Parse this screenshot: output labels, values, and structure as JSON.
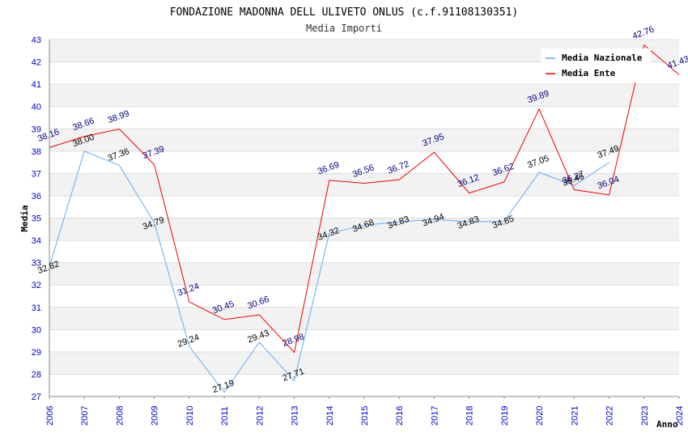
{
  "chart_data": {
    "type": "line",
    "title": "FONDAZIONE MADONNA DELL ULIVETO ONLUS (c.f.91108130351)",
    "subtitle": "Media Importi",
    "xlabel": "Anno",
    "ylabel": "Media",
    "ylim": [
      27,
      43
    ],
    "yticks": [
      "27",
      "28",
      "29",
      "30",
      "31",
      "32",
      "33",
      "34",
      "35",
      "36",
      "37",
      "38",
      "39",
      "40",
      "41",
      "42",
      "43"
    ],
    "categories": [
      "2006",
      "2007",
      "2008",
      "2009",
      "2010",
      "2011",
      "2012",
      "2013",
      "2014",
      "2015",
      "2016",
      "2017",
      "2018",
      "2019",
      "2020",
      "2021",
      "2022",
      "2023",
      "2024"
    ],
    "legend_position": "top-right",
    "series": [
      {
        "name": "Media Nazionale",
        "color": "#66aaee",
        "values": [
          32.82,
          38.0,
          37.36,
          34.79,
          29.24,
          27.19,
          29.43,
          27.71,
          34.32,
          34.68,
          34.83,
          34.94,
          34.83,
          34.85,
          37.05,
          36.46,
          37.49,
          null,
          null
        ],
        "labels": [
          "32.82",
          "38.00",
          "37.36",
          "34.79",
          "29.24",
          "27.19",
          "29.43",
          "27.71",
          "34.32",
          "34.68",
          "34.83",
          "34.94",
          "34.83",
          "34.85",
          "37.05",
          "36.46",
          "37.49",
          null,
          null
        ]
      },
      {
        "name": "Media Ente",
        "color": "#ee0000",
        "values": [
          38.16,
          38.66,
          38.99,
          37.39,
          31.24,
          30.45,
          30.66,
          28.98,
          36.69,
          36.56,
          36.72,
          37.95,
          36.12,
          36.62,
          39.89,
          36.27,
          36.04,
          42.76,
          41.43
        ],
        "labels": [
          "38.16",
          "38.66",
          "38.99",
          "37.39",
          "31.24",
          "30.45",
          "30.66",
          "28.98",
          "36.69",
          "36.56",
          "36.72",
          "37.95",
          "36.12",
          "36.62",
          "39.89",
          "36.27",
          "36.04",
          "42.76",
          "41.43"
        ]
      }
    ]
  }
}
